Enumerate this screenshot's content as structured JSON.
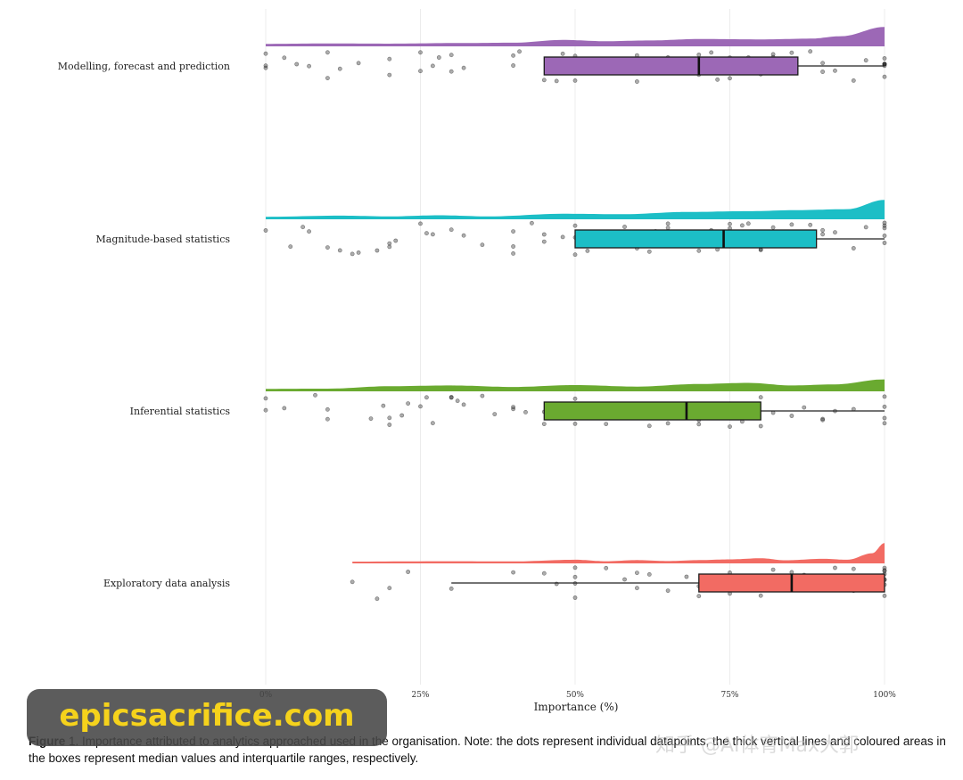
{
  "chart_data": {
    "type": "raincloud",
    "xlabel": "Importance (%)",
    "xlim": [
      0,
      100
    ],
    "xticks": [
      0,
      25,
      50,
      75,
      100
    ],
    "xtick_labels": [
      "0%",
      "25%",
      "50%",
      "75%",
      "100%"
    ],
    "grid": "vertical",
    "series": [
      {
        "name": "Modelling, forecast and prediction",
        "color": "#9c68b6",
        "q1": 45,
        "median": 70,
        "q3": 86,
        "whisker_low": 45,
        "whisker_high": 100,
        "points": [
          0,
          0,
          0,
          3,
          5,
          7,
          10,
          10,
          12,
          15,
          20,
          20,
          25,
          25,
          27,
          28,
          30,
          30,
          32,
          40,
          40,
          41,
          45,
          47,
          48,
          50,
          50,
          50,
          52,
          55,
          55,
          58,
          60,
          60,
          62,
          65,
          67,
          68,
          70,
          70,
          70,
          70,
          72,
          73,
          75,
          75,
          77,
          78,
          80,
          80,
          80,
          80,
          82,
          82,
          85,
          85,
          88,
          90,
          90,
          92,
          95,
          97,
          100,
          100,
          100,
          100,
          100,
          100,
          100
        ],
        "density": [
          [
            0,
            0.04
          ],
          [
            10,
            0.06
          ],
          [
            20,
            0.05
          ],
          [
            30,
            0.08
          ],
          [
            40,
            0.1
          ],
          [
            48,
            0.25
          ],
          [
            55,
            0.18
          ],
          [
            62,
            0.22
          ],
          [
            70,
            0.3
          ],
          [
            80,
            0.28
          ],
          [
            88,
            0.32
          ],
          [
            93,
            0.45
          ],
          [
            100,
            0.95
          ]
        ]
      },
      {
        "name": "Magnitude-based statistics",
        "color": "#1cbec6",
        "q1": 50,
        "median": 74,
        "q3": 89,
        "whisker_low": 50,
        "whisker_high": 100,
        "points": [
          0,
          4,
          6,
          7,
          10,
          12,
          14,
          15,
          18,
          20,
          20,
          21,
          25,
          26,
          27,
          30,
          32,
          35,
          40,
          40,
          40,
          43,
          45,
          45,
          48,
          50,
          50,
          50,
          52,
          55,
          55,
          58,
          60,
          62,
          63,
          65,
          65,
          67,
          68,
          70,
          70,
          72,
          73,
          75,
          75,
          77,
          78,
          80,
          80,
          80,
          82,
          82,
          85,
          85,
          87,
          88,
          90,
          90,
          92,
          95,
          97,
          100,
          100,
          100,
          100,
          100
        ],
        "density": [
          [
            0,
            0.04
          ],
          [
            12,
            0.1
          ],
          [
            20,
            0.06
          ],
          [
            28,
            0.12
          ],
          [
            36,
            0.06
          ],
          [
            48,
            0.2
          ],
          [
            58,
            0.18
          ],
          [
            68,
            0.3
          ],
          [
            78,
            0.34
          ],
          [
            86,
            0.4
          ],
          [
            94,
            0.45
          ],
          [
            100,
            0.95
          ]
        ]
      },
      {
        "name": "Inferential statistics",
        "color": "#6aaa30",
        "q1": 45,
        "median": 68,
        "q3": 80,
        "whisker_low": 45,
        "whisker_high": 100,
        "points": [
          0,
          0,
          3,
          8,
          10,
          10,
          17,
          19,
          20,
          20,
          22,
          23,
          25,
          26,
          27,
          30,
          30,
          31,
          32,
          35,
          37,
          40,
          40,
          42,
          45,
          45,
          47,
          50,
          50,
          50,
          52,
          55,
          57,
          60,
          62,
          65,
          65,
          67,
          70,
          70,
          70,
          72,
          75,
          75,
          77,
          78,
          80,
          80,
          82,
          85,
          87,
          90,
          90,
          92,
          95,
          100,
          100,
          100,
          100
        ],
        "density": [
          [
            0,
            0.04
          ],
          [
            10,
            0.05
          ],
          [
            20,
            0.18
          ],
          [
            30,
            0.22
          ],
          [
            40,
            0.14
          ],
          [
            50,
            0.24
          ],
          [
            60,
            0.16
          ],
          [
            70,
            0.3
          ],
          [
            78,
            0.36
          ],
          [
            85,
            0.22
          ],
          [
            92,
            0.28
          ],
          [
            100,
            0.55
          ]
        ]
      },
      {
        "name": "Exploratory data analysis",
        "color": "#f26b63",
        "q1": 70,
        "median": 85,
        "q3": 100,
        "whisker_low": 30,
        "whisker_high": 100,
        "points": [
          14,
          18,
          20,
          23,
          30,
          40,
          45,
          47,
          50,
          50,
          50,
          50,
          55,
          58,
          60,
          60,
          62,
          65,
          68,
          70,
          70,
          72,
          75,
          75,
          77,
          78,
          80,
          80,
          82,
          85,
          85,
          87,
          90,
          90,
          90,
          92,
          95,
          95,
          97,
          100,
          100,
          100,
          100,
          100,
          100,
          100,
          100
        ],
        "density": [
          [
            14,
            0.0
          ],
          [
            30,
            0.02
          ],
          [
            40,
            0.01
          ],
          [
            50,
            0.1
          ],
          [
            55,
            0.02
          ],
          [
            60,
            0.08
          ],
          [
            65,
            0.03
          ],
          [
            70,
            0.08
          ],
          [
            75,
            0.12
          ],
          [
            80,
            0.18
          ],
          [
            84,
            0.07
          ],
          [
            90,
            0.15
          ],
          [
            94,
            0.1
          ],
          [
            98,
            0.45
          ],
          [
            100,
            1.0
          ]
        ]
      }
    ]
  },
  "caption": {
    "head": "Figure",
    "text": " 1. Importance attributed to analytics approached used in the organisation. Note: the dots represent individual datapoints, the thick vertical lines and coloured areas in the boxes represent median values and interquartile ranges, respectively."
  },
  "banner": {
    "text": "epicsacrifice.com"
  },
  "watermark": {
    "text": "知乎 @AI体育Max大郭"
  }
}
